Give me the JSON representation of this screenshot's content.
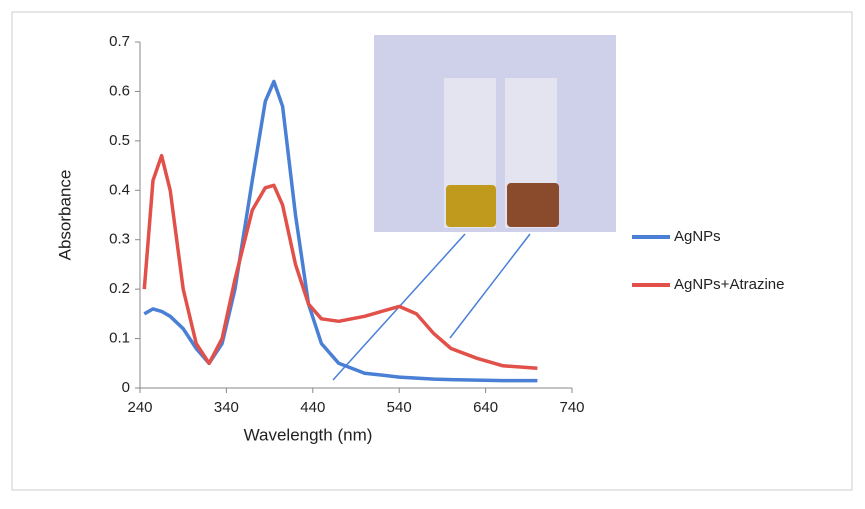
{
  "chart_data": {
    "type": "line",
    "x_label": "Wavelength (nm)",
    "y_label": "Absorbance",
    "x": [
      245,
      255,
      265,
      275,
      290,
      305,
      320,
      335,
      350,
      370,
      385,
      395,
      405,
      420,
      435,
      450,
      470,
      500,
      540,
      560,
      580,
      600,
      630,
      660,
      700
    ],
    "series": [
      {
        "name": "AgNPs",
        "color": "#4a7fd6",
        "values": [
          0.15,
          0.16,
          0.155,
          0.145,
          0.12,
          0.08,
          0.05,
          0.09,
          0.2,
          0.42,
          0.58,
          0.62,
          0.57,
          0.35,
          0.17,
          0.09,
          0.05,
          0.03,
          0.022,
          0.02,
          0.018,
          0.017,
          0.016,
          0.015,
          0.015
        ]
      },
      {
        "name": "AgNPs+Atrazine",
        "color": "#e2504a",
        "values": [
          0.2,
          0.42,
          0.47,
          0.4,
          0.2,
          0.09,
          0.05,
          0.1,
          0.22,
          0.36,
          0.405,
          0.41,
          0.37,
          0.25,
          0.17,
          0.14,
          0.135,
          0.145,
          0.165,
          0.15,
          0.11,
          0.08,
          0.06,
          0.045,
          0.04
        ]
      }
    ],
    "xlim": [
      240,
      740
    ],
    "xticks": [
      240,
      340,
      440,
      540,
      640,
      740
    ],
    "ylim": [
      0,
      0.7
    ],
    "yticks": [
      0,
      0.1,
      0.2,
      0.3,
      0.4,
      0.5,
      0.6,
      0.7
    ],
    "legend": "right"
  }
}
